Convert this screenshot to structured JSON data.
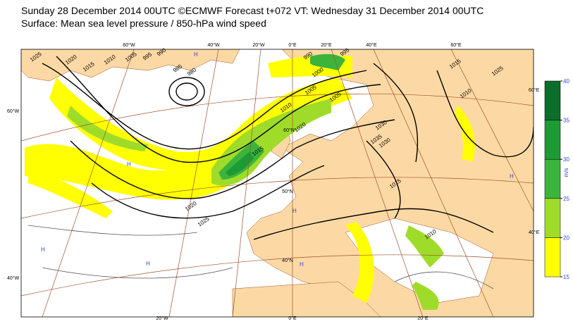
{
  "header": {
    "line1": "Sunday 28 December 2014 00UTC ©ECMWF Forecast t+072 VT: Wednesday 31 December 2014 00UTC",
    "line2": "Surface: Mean sea level pressure / 850-hPa wind speed"
  },
  "colorbar": {
    "unit": "m/s",
    "ticks": [
      15,
      20,
      25,
      30,
      35,
      40
    ],
    "colors": [
      "#ffff00",
      "#9fdc2a",
      "#3cb43c",
      "#1e9a34",
      "#0b6e2a"
    ]
  },
  "graticule_labels": [
    "60°W",
    "40°W",
    "20°W",
    "0°E",
    "20°E",
    "40°E",
    "60°E",
    "60°W",
    "40°W",
    "60°E",
    "40°E",
    "20°W",
    "0°E",
    "20°E",
    "60°N",
    "50°N",
    "40°N"
  ],
  "isobar_labels": [
    "1025",
    "1020",
    "1015",
    "1010",
    "1005",
    "995",
    "990",
    "985",
    "980",
    "990",
    "995",
    "1000",
    "1005",
    "1010",
    "1015",
    "1020",
    "1025",
    "1030",
    "1035",
    "1015",
    "1010",
    "1020",
    "1025",
    "1015",
    "1010",
    "1030",
    "1005"
  ],
  "pressure_centres": [
    "H",
    "H",
    "H",
    "H",
    "H",
    "H",
    "H"
  ]
}
